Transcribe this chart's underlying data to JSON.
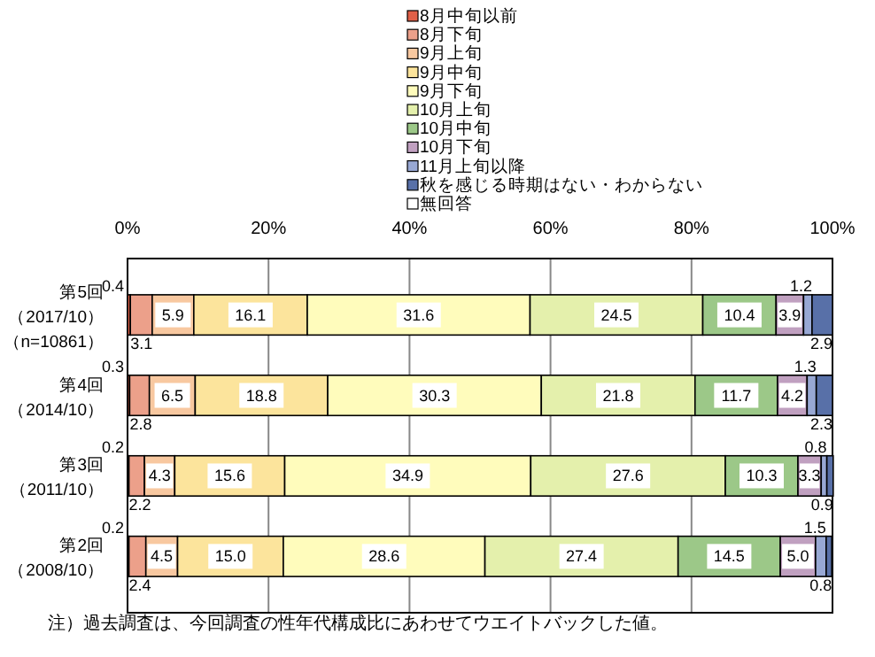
{
  "chart_data": {
    "type": "bar",
    "orientation": "horizontal",
    "stacked": true,
    "grid": "x",
    "legend": "top",
    "xlim": [
      0,
      100
    ],
    "xticks": [
      {
        "value": 0,
        "label": "0%"
      },
      {
        "value": 20,
        "label": "20%"
      },
      {
        "value": 40,
        "label": "40%"
      },
      {
        "value": 60,
        "label": "60%"
      },
      {
        "value": 80,
        "label": "80%"
      },
      {
        "value": 100,
        "label": "100%"
      }
    ],
    "categories": [
      "第5回（2017/10）（n=10861）",
      "第4回（2014/10）",
      "第3回（2011/10）",
      "第2回（2008/10）"
    ],
    "series": [
      {
        "name": "8月中旬以前",
        "color": "#e06048",
        "values": [
          0.4,
          0.3,
          0.2,
          0.2
        ],
        "value_labels": [
          "0.4",
          "0.3",
          "0.2",
          "0.2"
        ]
      },
      {
        "name": "8月下旬",
        "color": "#eca08a",
        "values": [
          3.1,
          2.8,
          2.2,
          2.4
        ],
        "value_labels": [
          "3.1",
          "2.8",
          "2.2",
          "2.4"
        ]
      },
      {
        "name": "9月上旬",
        "color": "#f8c8a0",
        "values": [
          5.9,
          6.5,
          4.3,
          4.5
        ],
        "value_labels": [
          "5.9",
          "6.5",
          "4.3",
          "4.5"
        ]
      },
      {
        "name": "9月中旬",
        "color": "#fce49c",
        "values": [
          16.1,
          18.8,
          15.6,
          15.0
        ],
        "value_labels": [
          "16.1",
          "18.8",
          "15.6",
          "15.0"
        ]
      },
      {
        "name": "9月下旬",
        "color": "#fffcbc",
        "values": [
          31.6,
          30.3,
          34.9,
          28.6
        ],
        "value_labels": [
          "31.6",
          "30.3",
          "34.9",
          "28.6"
        ]
      },
      {
        "name": "10月上旬",
        "color": "#e4f0ac",
        "values": [
          24.5,
          21.8,
          27.6,
          27.4
        ],
        "value_labels": [
          "24.5",
          "21.8",
          "27.6",
          "27.4"
        ]
      },
      {
        "name": "10月中旬",
        "color": "#9cc888",
        "values": [
          10.4,
          11.7,
          10.3,
          14.5
        ],
        "value_labels": [
          "10.4",
          "11.7",
          "10.3",
          "14.5"
        ]
      },
      {
        "name": "10月下旬",
        "color": "#c0a0c0",
        "values": [
          3.9,
          4.2,
          3.3,
          5.0
        ],
        "value_labels": [
          "3.9",
          "4.2",
          "3.3",
          "5.0"
        ]
      },
      {
        "name": "11月上旬以降",
        "color": "#98a8d4",
        "values": [
          1.2,
          1.3,
          0.8,
          1.5
        ],
        "value_labels": [
          "1.2",
          "1.3",
          "0.8",
          "1.5"
        ]
      },
      {
        "name": "秋を感じる時期はない・わからない",
        "color": "#5870a8",
        "values": [
          2.9,
          2.3,
          0.9,
          0.8
        ],
        "value_labels": [
          "2.9",
          "2.3",
          "0.9",
          "0.8"
        ]
      },
      {
        "name": "無回答",
        "color": "#ffffff",
        "values": [
          null,
          null,
          null,
          null
        ]
      }
    ],
    "annotations": [
      "注）過去調査は、今回調査の性年代構成比にあわせてウエイトバックした値。"
    ]
  }
}
